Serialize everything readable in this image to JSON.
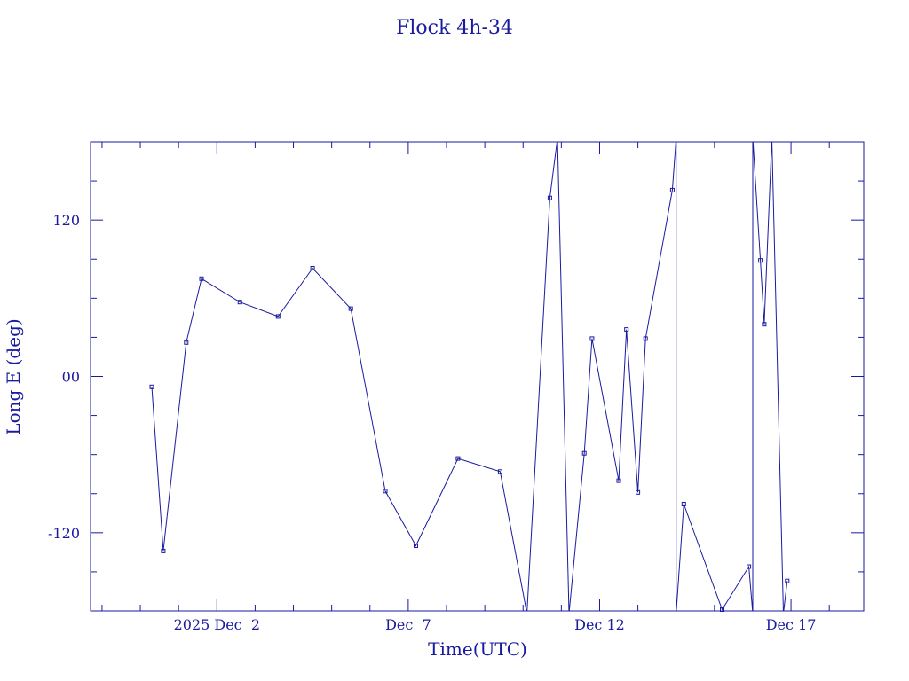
{
  "chart_data": {
    "type": "line",
    "title": "Flock 4h-34",
    "xlabel": "Time(UTC)",
    "ylabel": "Long E (deg)",
    "x_unit": "days of 2025 December (UTC)",
    "xlim": [
      28.7,
      18.9
    ],
    "xlim_note": "x values are day-of-month in Nov/Dec 2025; xlim spans 2025-11-28.7 to 2025-12-18.9",
    "xlim_start": "2025-11-28.7",
    "xlim_end": "2025-12-18.9",
    "ylim": [
      -180,
      180
    ],
    "x_ticks": [
      {
        "date": "2025-12-02",
        "label": "2025 Dec  2"
      },
      {
        "date": "2025-12-07",
        "label": "Dec  7"
      },
      {
        "date": "2025-12-12",
        "label": "Dec 12"
      },
      {
        "date": "2025-12-17",
        "label": "Dec 17"
      }
    ],
    "y_ticks": [
      {
        "value": 120,
        "label": "120"
      },
      {
        "value": 0,
        "label": "00"
      },
      {
        "value": -120,
        "label": "-120"
      }
    ],
    "line_color": "#1a1aa0",
    "series": [
      {
        "points": [
          {
            "date": "2025-11-30.3",
            "y": -8
          },
          {
            "date": "2025-11-30.6",
            "y": -134
          },
          {
            "date": "2025-12-01.2",
            "y": 26
          },
          {
            "date": "2025-12-01.6",
            "y": 75
          },
          {
            "date": "2025-12-02.6",
            "y": 57
          },
          {
            "date": "2025-12-03.6",
            "y": 46
          },
          {
            "date": "2025-12-04.5",
            "y": 83
          },
          {
            "date": "2025-12-05.5",
            "y": 52
          },
          {
            "date": "2025-12-06.4",
            "y": -88
          },
          {
            "date": "2025-12-07.2",
            "y": -130
          },
          {
            "date": "2025-12-08.3",
            "y": -63
          },
          {
            "date": "2025-12-09.4",
            "y": -73
          },
          {
            "date": "2025-12-10.1",
            "y": -182
          },
          {
            "date": "2025-12-10.7",
            "y": 137
          },
          {
            "date": "2025-12-10.9",
            "y": 183
          },
          {
            "date": "2025-12-11.2",
            "y": -182
          },
          {
            "date": "2025-12-11.6",
            "y": -59
          },
          {
            "date": "2025-12-11.8",
            "y": 29
          },
          {
            "date": "2025-12-12.5",
            "y": -80
          },
          {
            "date": "2025-12-12.7",
            "y": 36
          },
          {
            "date": "2025-12-13.0",
            "y": -89
          },
          {
            "date": "2025-12-13.2",
            "y": 29
          },
          {
            "date": "2025-12-13.9",
            "y": 143
          },
          {
            "date": "2025-12-14.0",
            "y": 183
          },
          {
            "date": "2025-12-14.0",
            "y": -182
          },
          {
            "date": "2025-12-14.2",
            "y": -98
          },
          {
            "date": "2025-12-15.2",
            "y": -179
          },
          {
            "date": "2025-12-15.9",
            "y": -146
          },
          {
            "date": "2025-12-16.0",
            "y": -182
          },
          {
            "date": "2025-12-16.0",
            "y": 183
          },
          {
            "date": "2025-12-16.2",
            "y": 89
          },
          {
            "date": "2025-12-16.3",
            "y": 40
          },
          {
            "date": "2025-12-16.5",
            "y": 183
          },
          {
            "date": "2025-12-16.8",
            "y": -182
          },
          {
            "date": "2025-12-16.9",
            "y": -157
          }
        ],
        "markers": [
          "2025-11-30.3",
          "2025-11-30.6",
          "2025-12-01.2",
          "2025-12-01.6",
          "2025-12-02.6",
          "2025-12-03.6",
          "2025-12-04.5",
          "2025-12-05.5",
          "2025-12-06.4",
          "2025-12-07.2",
          "2025-12-08.3",
          "2025-12-09.4",
          "2025-12-10.7",
          "2025-12-11.6",
          "2025-12-11.8",
          "2025-12-12.5",
          "2025-12-12.7",
          "2025-12-13.0",
          "2025-12-13.2",
          "2025-12-13.9",
          "2025-12-14.2",
          "2025-12-15.2",
          "2025-12-15.9",
          "2025-12-16.2",
          "2025-12-16.3",
          "2025-12-16.9"
        ]
      }
    ]
  }
}
